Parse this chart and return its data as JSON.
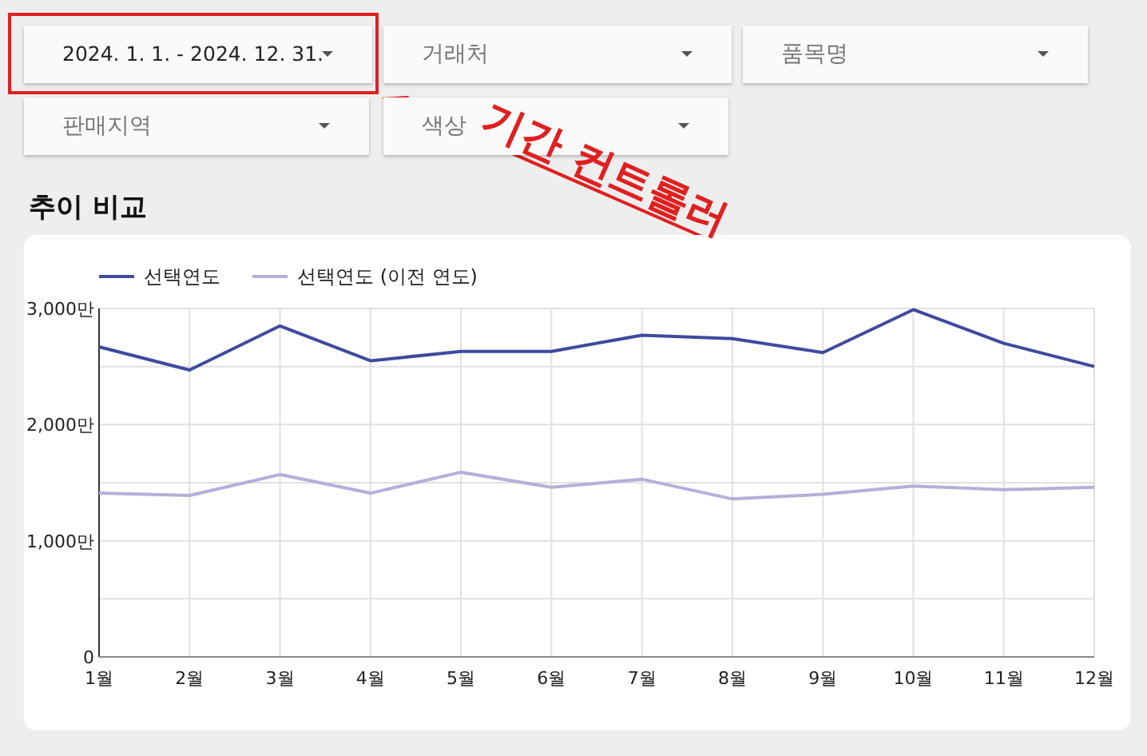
{
  "chart_data": {
    "type": "line",
    "title": "추이 비교",
    "categories": [
      "1월",
      "2월",
      "3월",
      "4월",
      "5월",
      "6월",
      "7월",
      "8월",
      "9월",
      "10월",
      "11월",
      "12월"
    ],
    "series": [
      {
        "name": "선택연도",
        "color": "#3f4a9e",
        "values": [
          2670,
          2470,
          2850,
          2550,
          2630,
          2630,
          2770,
          2740,
          2620,
          2990,
          2700,
          2500
        ]
      },
      {
        "name": "선택연도 (이전 연도)",
        "color": "#b3b0d9",
        "values": [
          1410,
          1390,
          1570,
          1410,
          1590,
          1460,
          1530,
          1360,
          1400,
          1470,
          1440,
          1460
        ]
      }
    ],
    "ylim": [
      0,
      3000
    ],
    "yticks": [
      {
        "value": 0,
        "label": "0"
      },
      {
        "value": 500,
        "label": null
      },
      {
        "value": 1000,
        "label": "1,000만"
      },
      {
        "value": 1500,
        "label": null
      },
      {
        "value": 2000,
        "label": "2,000만"
      },
      {
        "value": 2500,
        "label": null
      },
      {
        "value": 3000,
        "label": "3,000만"
      }
    ],
    "grid": true,
    "legend": "top left",
    "marker": "none",
    "line_style": "solid",
    "annotations": [
      "2024. 1. 1. - 2024. 12. 31.",
      "거래처",
      "품목명",
      "판매지역",
      "색상",
      "기간 컨트롤러"
    ]
  }
}
